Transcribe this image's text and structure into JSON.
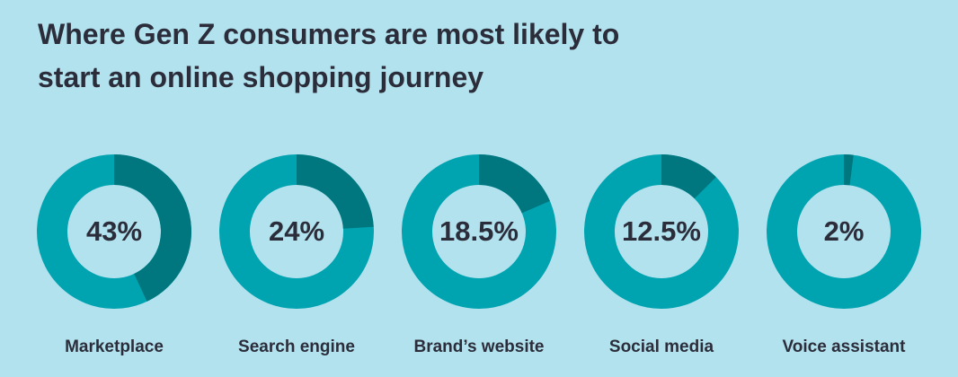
{
  "chart_data": {
    "type": "donut",
    "title": "Where Gen Z consumers are most likely to start an online shopping journey",
    "categories": [
      "Marketplace",
      "Search engine",
      "Brand’s website",
      "Social media",
      "Voice assistant"
    ],
    "values": [
      43,
      24,
      18.5,
      12.5,
      2
    ],
    "value_labels": [
      "43%",
      "24%",
      "18.5%",
      "12.5%",
      "2%"
    ],
    "color": "#00777f",
    "track_color": "#00a3b0"
  }
}
